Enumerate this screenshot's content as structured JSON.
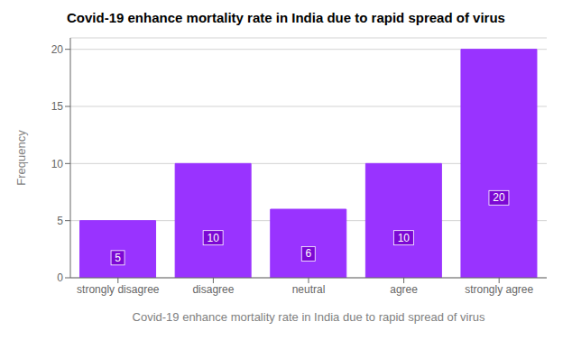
{
  "chart_data": {
    "type": "bar",
    "title": "Covid-19 enhance mortality rate in India due to rapid spread of virus",
    "xlabel": "Covid-19 enhance mortality rate in India due to rapid spread of virus",
    "ylabel": "Frequency",
    "categories": [
      "strongly disagree",
      "disagree",
      "neutral",
      "agree",
      "strongly agree"
    ],
    "values": [
      5,
      10,
      6,
      10,
      20
    ],
    "color": "#9933FF",
    "ylim": [
      0,
      21
    ],
    "yticks": [
      0,
      5,
      10,
      15,
      20
    ],
    "grid": true,
    "data_labels": true
  }
}
